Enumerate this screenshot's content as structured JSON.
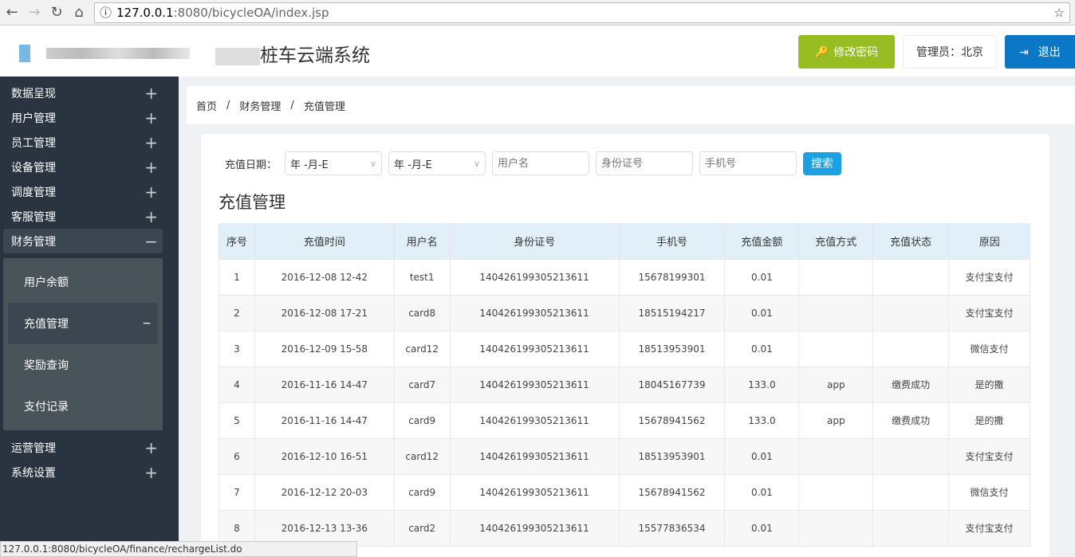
{
  "browser": {
    "url_host": "127.0.0.1",
    "url_path": ":8080/bicycleOA/index.jsp"
  },
  "header": {
    "title": "桩车云端系统",
    "change_password": "修改密码",
    "admin": "管理员：北京",
    "logout": "退出"
  },
  "sidebar": {
    "items": [
      {
        "label": "数据呈现",
        "sign": "+"
      },
      {
        "label": "用户管理",
        "sign": "+"
      },
      {
        "label": "员工管理",
        "sign": "+"
      },
      {
        "label": "设备管理",
        "sign": "+"
      },
      {
        "label": "调度管理",
        "sign": "+"
      },
      {
        "label": "客服管理",
        "sign": "+"
      },
      {
        "label": "财务管理",
        "sign": "−"
      }
    ],
    "sub": [
      {
        "label": "用户余额"
      },
      {
        "label": "充值管理",
        "sign": "−"
      },
      {
        "label": "奖励查询"
      },
      {
        "label": "支付记录"
      }
    ],
    "items2": [
      {
        "label": "运营管理",
        "sign": "+"
      },
      {
        "label": "系统设置",
        "sign": "+"
      }
    ]
  },
  "breadcrumb": [
    "首页",
    "财务管理",
    "充值管理"
  ],
  "filters": {
    "date_label": "充值日期：",
    "date_start": "年 -月-E",
    "date_end": "年 -月-E",
    "username_placeholder": "用户名",
    "idcard_placeholder": "身份证号",
    "phone_placeholder": "手机号",
    "search": "搜索"
  },
  "page_title": "充值管理",
  "table": {
    "headers": [
      "序号",
      "充值时间",
      "用户名",
      "身份证号",
      "手机号",
      "充值金额",
      "充值方式",
      "充值状态",
      "原因"
    ],
    "rows": [
      [
        "1",
        "2016-12-08 12-42",
        "test1",
        "140426199305213611",
        "15678199301",
        "0.01",
        "",
        "",
        "支付宝支付"
      ],
      [
        "2",
        "2016-12-08 17-21",
        "card8",
        "140426199305213611",
        "18515194217",
        "0.01",
        "",
        "",
        "支付宝支付"
      ],
      [
        "3",
        "2016-12-09 15-58",
        "card12",
        "140426199305213611",
        "18513953901",
        "0.01",
        "",
        "",
        "微信支付"
      ],
      [
        "4",
        "2016-11-16 14-47",
        "card7",
        "140426199305213611",
        "18045167739",
        "133.0",
        "app",
        "缴费成功",
        "是的撒"
      ],
      [
        "5",
        "2016-11-16 14-47",
        "card9",
        "140426199305213611",
        "15678941562",
        "133.0",
        "app",
        "缴费成功",
        "是的撒"
      ],
      [
        "6",
        "2016-12-10 16-51",
        "card12",
        "140426199305213611",
        "18513953901",
        "0.01",
        "",
        "",
        "支付宝支付"
      ],
      [
        "7",
        "2016-12-12 20-03",
        "card9",
        "140426199305213611",
        "15678941562",
        "0.01",
        "",
        "",
        "微信支付"
      ],
      [
        "8",
        "2016-12-13 13-36",
        "card2",
        "140426199305213611",
        "15577836534",
        "0.01",
        "",
        "",
        "支付宝支付"
      ]
    ]
  },
  "status_bar": "127.0.0.1:8080/bicycleOA/finance/rechargeList.do"
}
